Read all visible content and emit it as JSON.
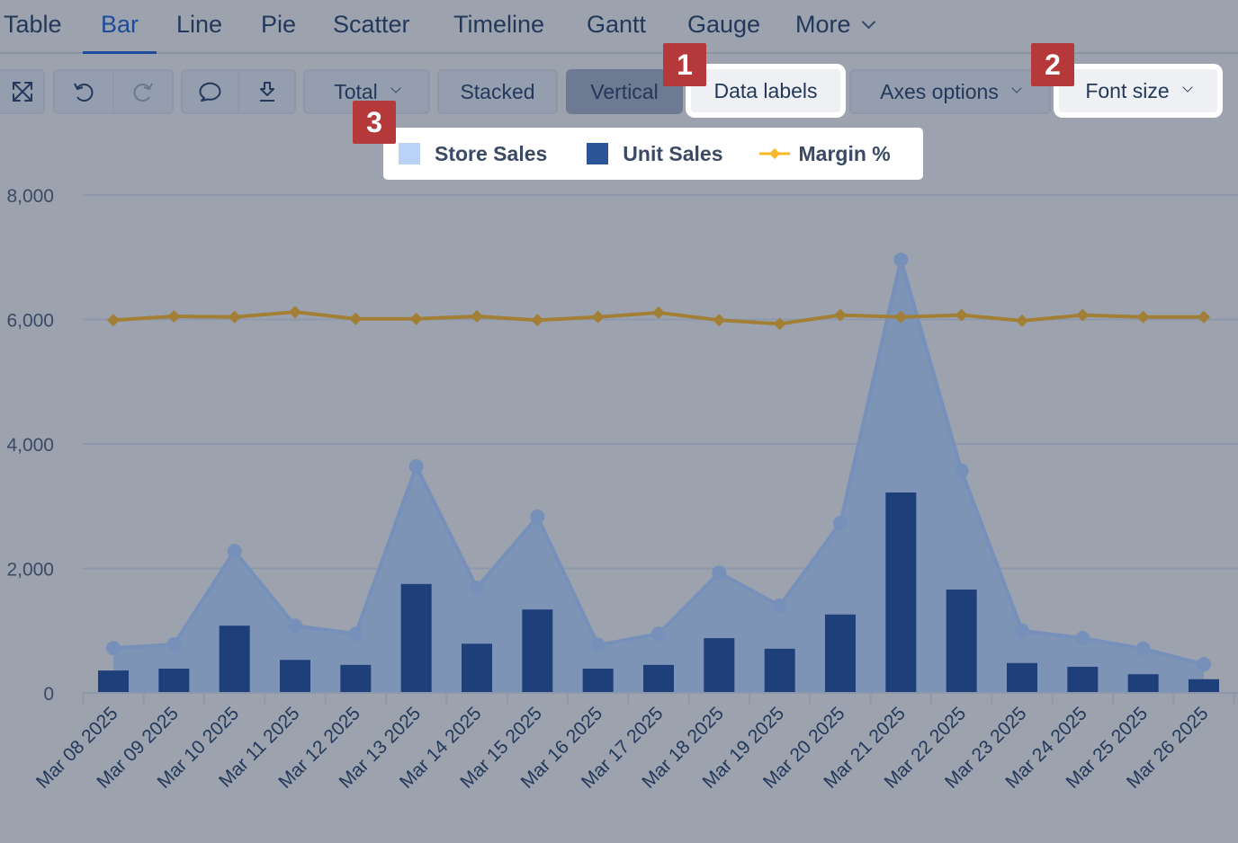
{
  "tabs": [
    {
      "label": "Table",
      "active": false
    },
    {
      "label": "Bar",
      "active": true
    },
    {
      "label": "Line",
      "active": false
    },
    {
      "label": "Pie",
      "active": false
    },
    {
      "label": "Scatter",
      "active": false
    },
    {
      "label": "Timeline",
      "active": false
    },
    {
      "label": "Gantt",
      "active": false
    },
    {
      "label": "Gauge",
      "active": false
    },
    {
      "label": "More",
      "active": false
    }
  ],
  "toolbar": {
    "icons": [
      "fullscreen-icon",
      "undo-icon",
      "redo-icon",
      "comment-icon",
      "download-icon"
    ],
    "total_label": "Total",
    "stacked_label": "Stacked",
    "vertical_label": "Vertical",
    "data_labels_label": "Data labels",
    "axes_options_label": "Axes options",
    "font_size_label": "Font size"
  },
  "badges": [
    "1",
    "2",
    "3"
  ],
  "colors": {
    "store_sales": "#7b93b6",
    "store_sales_legend": "#b9d3f7",
    "unit_sales": "#1f3f7a",
    "unit_sales_legend": "#2c5597",
    "margin": "#a27f35",
    "margin_legend": "#f7b829",
    "badge": "#b5383a"
  },
  "chart_data": {
    "type": "bar",
    "title": "",
    "xlabel": "",
    "ylabel": "",
    "ylim": [
      0,
      8000
    ],
    "yticks": [
      "0",
      "2,000",
      "4,000",
      "6,000",
      "8,000"
    ],
    "ytick_values": [
      0,
      2000,
      4000,
      6000,
      8000
    ],
    "grid": true,
    "legend_position": "top-center",
    "categories": [
      "Mar 08 2025",
      "Mar 09 2025",
      "Mar 10 2025",
      "Mar 11 2025",
      "Mar 12 2025",
      "Mar 13 2025",
      "Mar 14 2025",
      "Mar 15 2025",
      "Mar 16 2025",
      "Mar 17 2025",
      "Mar 18 2025",
      "Mar 19 2025",
      "Mar 20 2025",
      "Mar 21 2025",
      "Mar 22 2025",
      "Mar 23 2025",
      "Mar 24 2025",
      "Mar 25 2025",
      "Mar 26 2025"
    ],
    "series": [
      {
        "name": "Store Sales",
        "type": "area",
        "values": [
          720,
          780,
          2280,
          1080,
          950,
          3640,
          1690,
          2830,
          770,
          950,
          1930,
          1400,
          2730,
          6960,
          3570,
          1000,
          880,
          710,
          460
        ]
      },
      {
        "name": "Unit Sales",
        "type": "bar",
        "values": [
          360,
          390,
          1080,
          530,
          450,
          1750,
          790,
          1340,
          390,
          450,
          880,
          710,
          1260,
          3220,
          1660,
          480,
          420,
          300,
          220
        ]
      },
      {
        "name": "Margin %",
        "type": "line",
        "values": [
          5990,
          6050,
          6040,
          6120,
          6010,
          6010,
          6050,
          5990,
          6040,
          6110,
          5990,
          5930,
          6070,
          6040,
          6070,
          5980,
          6070,
          6040,
          6040
        ]
      }
    ]
  }
}
